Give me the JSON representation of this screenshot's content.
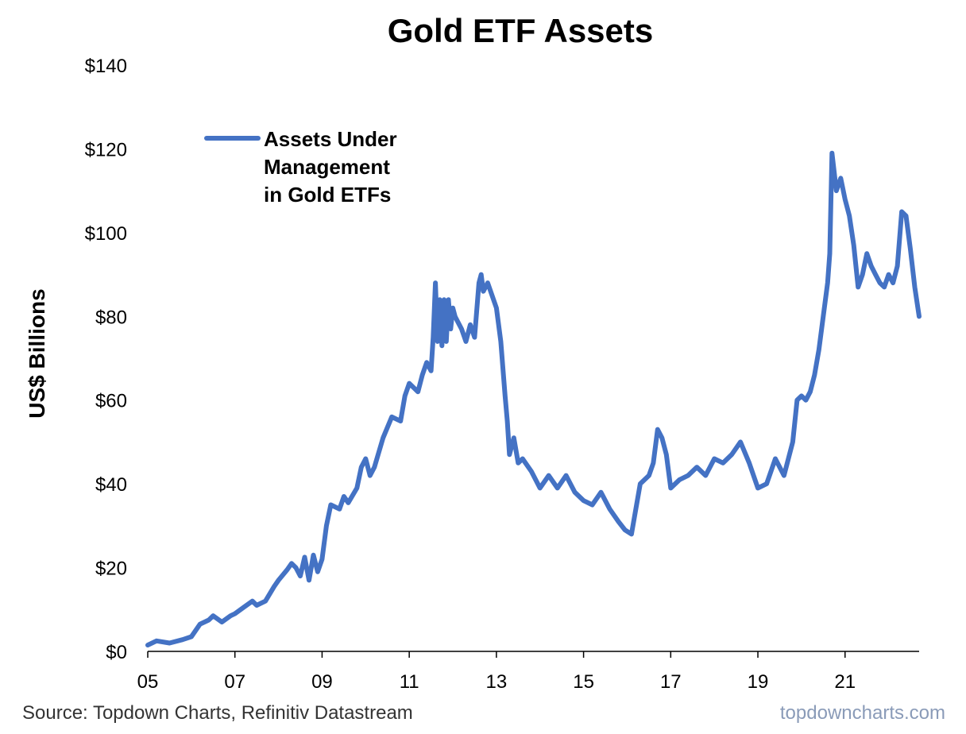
{
  "chart_data": {
    "type": "line",
    "title": "Gold ETF Assets",
    "ylabel": "US$ Billions",
    "xlabel": "",
    "ylim": [
      0,
      140
    ],
    "xlim": [
      2005.0,
      2022.7
    ],
    "y_ticks": [
      "$0",
      "$20",
      "$40",
      "$60",
      "$80",
      "$100",
      "$120",
      "$140"
    ],
    "y_tick_values": [
      0,
      20,
      40,
      60,
      80,
      100,
      120,
      140
    ],
    "x_ticks": [
      "05",
      "07",
      "09",
      "11",
      "13",
      "15",
      "17",
      "19",
      "21"
    ],
    "x_tick_values": [
      2005,
      2007,
      2009,
      2011,
      2013,
      2015,
      2017,
      2019,
      2021
    ],
    "grid": false,
    "legend_position": "top-left",
    "series": [
      {
        "name": "Assets Under Management in Gold ETFs",
        "color": "#4472C4",
        "x": [
          2005.0,
          2005.2,
          2005.5,
          2005.8,
          2006.0,
          2006.2,
          2006.4,
          2006.5,
          2006.7,
          2006.9,
          2007.0,
          2007.2,
          2007.4,
          2007.5,
          2007.7,
          2007.9,
          2008.0,
          2008.2,
          2008.3,
          2008.4,
          2008.5,
          2008.6,
          2008.7,
          2008.8,
          2008.9,
          2009.0,
          2009.1,
          2009.2,
          2009.4,
          2009.5,
          2009.6,
          2009.8,
          2009.9,
          2010.0,
          2010.1,
          2010.2,
          2010.4,
          2010.6,
          2010.8,
          2010.9,
          2011.0,
          2011.1,
          2011.2,
          2011.3,
          2011.4,
          2011.5,
          2011.55,
          2011.6,
          2011.65,
          2011.7,
          2011.75,
          2011.8,
          2011.85,
          2011.9,
          2011.95,
          2012.0,
          2012.05,
          2012.1,
          2012.2,
          2012.3,
          2012.4,
          2012.5,
          2012.6,
          2012.65,
          2012.7,
          2012.8,
          2012.9,
          2013.0,
          2013.1,
          2013.2,
          2013.25,
          2013.3,
          2013.4,
          2013.5,
          2013.6,
          2013.8,
          2014.0,
          2014.2,
          2014.4,
          2014.6,
          2014.8,
          2015.0,
          2015.2,
          2015.4,
          2015.6,
          2015.8,
          2015.95,
          2016.1,
          2016.3,
          2016.5,
          2016.6,
          2016.7,
          2016.8,
          2016.9,
          2017.0,
          2017.2,
          2017.4,
          2017.6,
          2017.8,
          2018.0,
          2018.2,
          2018.4,
          2018.6,
          2018.8,
          2019.0,
          2019.2,
          2019.4,
          2019.5,
          2019.6,
          2019.8,
          2019.9,
          2020.0,
          2020.1,
          2020.2,
          2020.3,
          2020.4,
          2020.5,
          2020.6,
          2020.65,
          2020.7,
          2020.8,
          2020.9,
          2021.0,
          2021.1,
          2021.2,
          2021.3,
          2021.4,
          2021.5,
          2021.6,
          2021.7,
          2021.8,
          2021.9,
          2022.0,
          2022.1,
          2022.2,
          2022.3,
          2022.4,
          2022.5,
          2022.6,
          2022.7
        ],
        "values": [
          1.5,
          2.5,
          2.0,
          2.8,
          3.5,
          6.5,
          7.5,
          8.5,
          7.0,
          8.5,
          9.0,
          10.5,
          12.0,
          11.0,
          12.0,
          15.5,
          17.0,
          19.5,
          21.0,
          20.0,
          18.0,
          22.5,
          17.0,
          23.0,
          19.0,
          22.0,
          30.0,
          35.0,
          34.0,
          37.0,
          35.5,
          39.0,
          44.0,
          46.0,
          42.0,
          44.0,
          51.0,
          56.0,
          55.0,
          61.0,
          64.0,
          63.0,
          62.0,
          66.0,
          69.0,
          67.0,
          75.0,
          88.0,
          74.0,
          84.0,
          73.0,
          84.0,
          74.0,
          84.0,
          77.0,
          82.0,
          80.0,
          79.0,
          77.0,
          74.0,
          78.0,
          75.0,
          88.0,
          90.0,
          86.0,
          88.0,
          85.0,
          82.0,
          74.0,
          61.0,
          55.0,
          47.0,
          51.0,
          45.0,
          46.0,
          43.0,
          39.0,
          42.0,
          39.0,
          42.0,
          38.0,
          36.0,
          35.0,
          38.0,
          34.0,
          31.0,
          29.0,
          28.0,
          40.0,
          42.0,
          45.0,
          53.0,
          51.0,
          47.0,
          39.0,
          41.0,
          42.0,
          44.0,
          42.0,
          46.0,
          45.0,
          47.0,
          50.0,
          45.0,
          39.0,
          40.0,
          46.0,
          44.0,
          42.0,
          50.0,
          60.0,
          61.0,
          60.0,
          62.0,
          66.0,
          72.0,
          80.0,
          88.0,
          95.0,
          119.0,
          110.0,
          113.0,
          108.0,
          104.0,
          97.0,
          87.0,
          90.0,
          95.0,
          92.0,
          90.0,
          88.0,
          87.0,
          90.0,
          88.0,
          92.0,
          105.0,
          104.0,
          96.0,
          87.0,
          80.0
        ]
      }
    ],
    "legend_lines": [
      "Assets Under",
      "Management",
      "in Gold ETFs"
    ]
  },
  "footer": {
    "source": "Source: Topdown Charts, Refinitiv Datastream",
    "brand": "topdowncharts.com"
  }
}
